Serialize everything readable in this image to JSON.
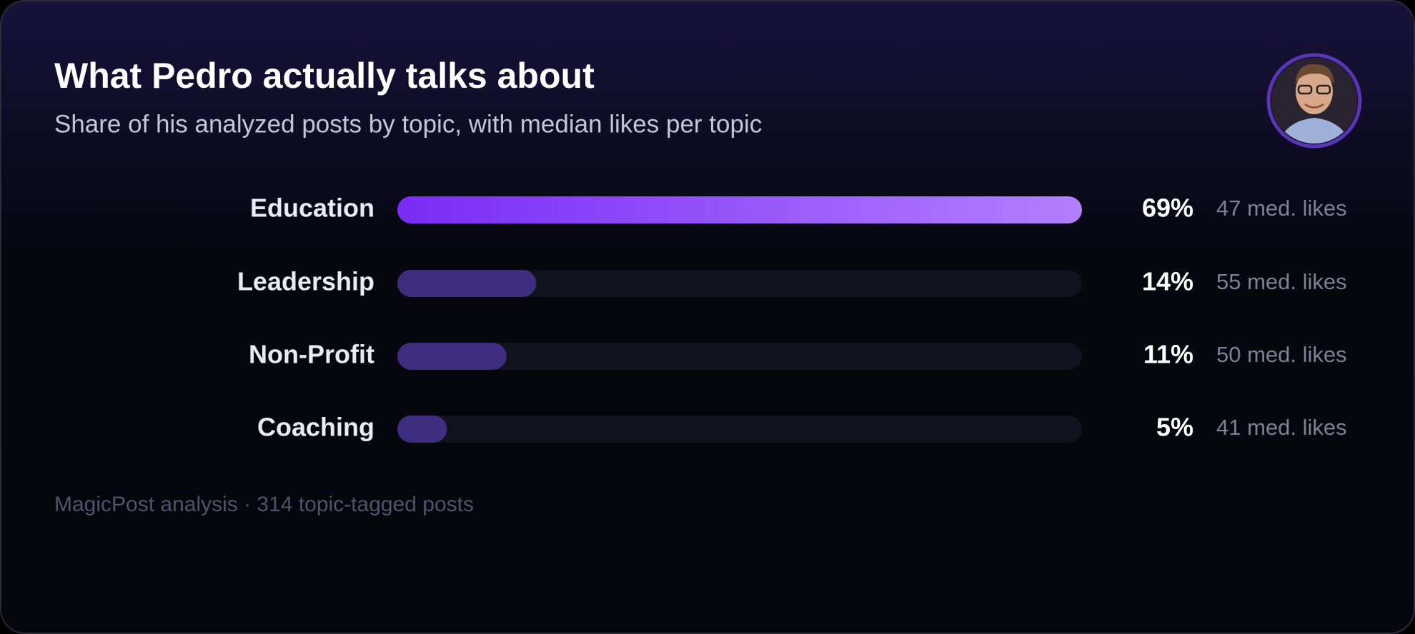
{
  "chart_data": {
    "type": "bar",
    "orientation": "horizontal",
    "title": "What Pedro actually talks about",
    "subtitle": "Share of his analyzed posts by topic, with median likes per topic",
    "categories": [
      "Education",
      "Leadership",
      "Non-Profit",
      "Coaching"
    ],
    "values": [
      69,
      14,
      11,
      5
    ],
    "value_labels": [
      "69%",
      "14%",
      "11%",
      "5%"
    ],
    "median_likes": [
      47,
      55,
      50,
      41
    ],
    "median_likes_labels": [
      "47 med. likes",
      "55 med. likes",
      "50 med. likes",
      "41 med. likes"
    ],
    "xlim": [
      0,
      69
    ],
    "color": "#3f2d80",
    "footer": "MagicPost analysis · 314 topic-tagged posts"
  }
}
